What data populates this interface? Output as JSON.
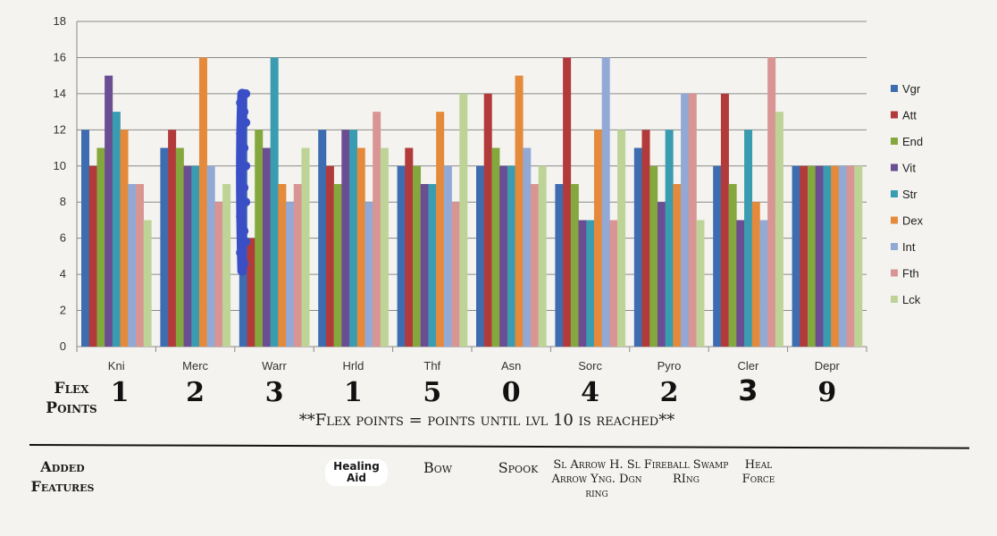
{
  "chart_data": {
    "type": "bar",
    "categories": [
      "Kni",
      "Merc",
      "Warr",
      "Hrld",
      "Thf",
      "Asn",
      "Sorc",
      "Pyro",
      "Cler",
      "Depr"
    ],
    "ylim": [
      0,
      18
    ],
    "yticks": [
      0,
      2,
      4,
      6,
      8,
      10,
      12,
      14,
      16,
      18
    ],
    "grid": true,
    "legend_position": "right",
    "series": [
      {
        "name": "Vgr",
        "color": "#3d6cb0",
        "values": [
          12,
          11,
          14,
          12,
          10,
          10,
          9,
          11,
          10,
          10
        ]
      },
      {
        "name": "Att",
        "color": "#b23a3a",
        "values": [
          10,
          12,
          6,
          10,
          11,
          14,
          16,
          12,
          14,
          10
        ]
      },
      {
        "name": "End",
        "color": "#84a83d",
        "values": [
          11,
          11,
          12,
          9,
          10,
          11,
          9,
          10,
          9,
          10
        ]
      },
      {
        "name": "Vit",
        "color": "#6a4d92",
        "values": [
          15,
          10,
          11,
          12,
          9,
          10,
          7,
          8,
          7,
          10
        ]
      },
      {
        "name": "Str",
        "color": "#3a9cb0",
        "values": [
          13,
          10,
          16,
          12,
          9,
          10,
          7,
          12,
          12,
          10
        ]
      },
      {
        "name": "Dex",
        "color": "#e58a3a",
        "values": [
          12,
          16,
          9,
          11,
          13,
          15,
          12,
          9,
          8,
          10
        ]
      },
      {
        "name": "Int",
        "color": "#92a9d6",
        "values": [
          9,
          10,
          8,
          8,
          10,
          11,
          16,
          14,
          7,
          10
        ]
      },
      {
        "name": "Fth",
        "color": "#d99593",
        "values": [
          9,
          8,
          9,
          13,
          8,
          9,
          7,
          14,
          16,
          10
        ]
      },
      {
        "name": "Lck",
        "color": "#bed497",
        "values": [
          7,
          9,
          11,
          11,
          14,
          10,
          12,
          7,
          13,
          10
        ]
      }
    ]
  },
  "flex": {
    "label": "Flex Points",
    "values": [
      "1",
      "2",
      "3",
      "1",
      "5",
      "0",
      "4",
      "2",
      "3",
      "9"
    ],
    "note": "**Flex points = points until lvl 10 is reached**"
  },
  "features": {
    "label": "Added Features",
    "items": [
      {
        "category": "Hrld",
        "text": "Healing Aid"
      },
      {
        "category": "Thf",
        "text": "Bow"
      },
      {
        "category": "Asn",
        "text": "Spook"
      },
      {
        "category": "Sorc",
        "text": "Sl Arrow H. Sl Arrow Yng. Dgn ring"
      },
      {
        "category": "Pyro",
        "text": "Fireball Swamp RIng"
      },
      {
        "category": "Cler",
        "text": "Heal Force"
      }
    ]
  },
  "annotation": {
    "color": "#3a4fc6"
  }
}
